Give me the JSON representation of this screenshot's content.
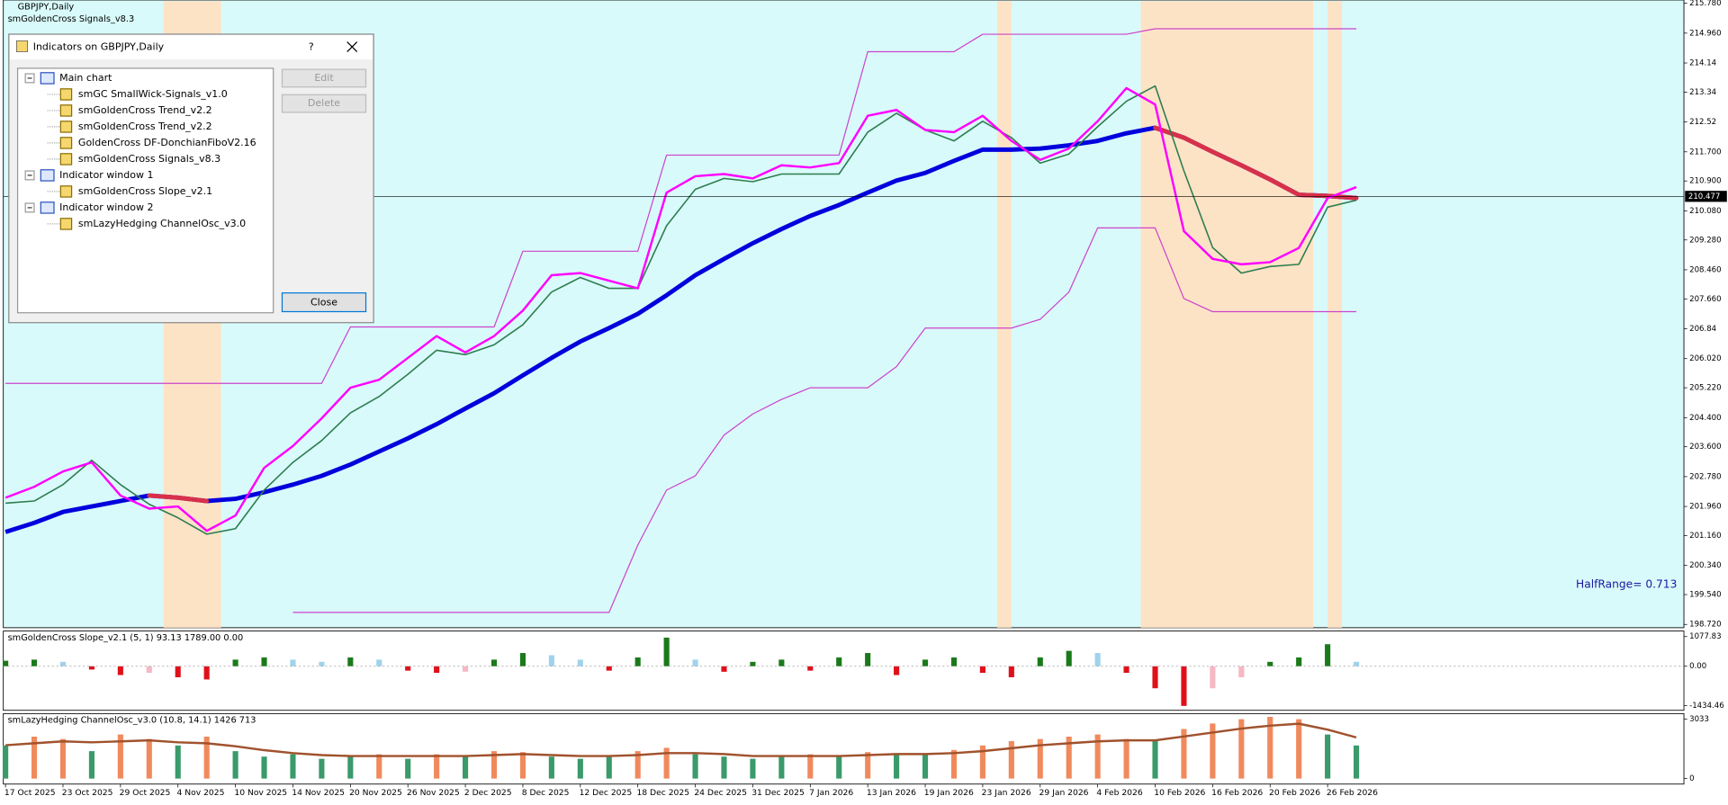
{
  "chart_header": {
    "symbol": "GBPJPY,Daily",
    "indicator": "smGoldenCross Signals_v8.3"
  },
  "dialog": {
    "title": "Indicators on GBPJPY,Daily",
    "help": "?",
    "tree": [
      {
        "label": "Main chart",
        "children": [
          "smGC SmallWick-Signals_v1.0",
          "smGoldenCross Trend_v2.2",
          "smGoldenCross Trend_v2.2",
          "GoldenCross DF-DonchianFiboV2.16",
          "smGoldenCross Signals_v8.3"
        ]
      },
      {
        "label": "Indicator window 1",
        "children": [
          "smGoldenCross Slope_v2.1"
        ]
      },
      {
        "label": "Indicator window 2",
        "children": [
          "smLazyHedging ChannelOsc_v3.0"
        ]
      }
    ],
    "buttons": {
      "edit": "Edit",
      "delete": "Delete",
      "close": "Close"
    }
  },
  "chart_data": [
    {
      "type": "line",
      "x": [
        0,
        2,
        4,
        6,
        8,
        10,
        12,
        14,
        16,
        18,
        20,
        22,
        24,
        26,
        28,
        30,
        32,
        34,
        36,
        38,
        40,
        42,
        44,
        46,
        48,
        50,
        52,
        54,
        56,
        58,
        60,
        62,
        64,
        66,
        68,
        70,
        72,
        74,
        76,
        78,
        80,
        82,
        84,
        86,
        88,
        90,
        92,
        94
      ],
      "series": [
        {
          "color": "#cc44cc",
          "line_width": 1,
          "values": [
            205.34,
            205.34,
            205.34,
            205.34,
            205.34,
            205.34,
            205.34,
            205.34,
            205.34,
            205.34,
            205.34,
            205.34,
            206.89,
            206.89,
            206.89,
            206.89,
            206.89,
            206.89,
            208.97,
            208.97,
            208.97,
            208.97,
            208.97,
            211.61,
            211.61,
            211.61,
            211.61,
            211.61,
            211.61,
            211.61,
            214.45,
            214.45,
            214.45,
            214.45,
            214.93,
            214.93,
            214.93,
            214.93,
            214.93,
            214.93,
            215.08,
            215.08,
            215.08,
            215.08,
            215.08,
            215.08,
            215.08,
            215.08
          ]
        },
        {
          "color": "#cc44cc",
          "line_width": 1,
          "values": [
            null,
            null,
            null,
            null,
            null,
            null,
            null,
            null,
            null,
            null,
            199.05,
            199.05,
            199.05,
            199.05,
            199.05,
            199.05,
            199.05,
            199.05,
            199.05,
            199.05,
            199.05,
            199.05,
            200.9,
            202.41,
            202.8,
            203.92,
            204.5,
            204.9,
            205.22,
            205.22,
            205.22,
            205.8,
            206.86,
            206.86,
            206.86,
            206.86,
            207.1,
            207.85,
            209.61,
            209.61,
            209.61,
            207.67,
            207.31,
            207.31,
            207.31,
            207.31,
            207.31,
            207.31
          ]
        },
        {
          "color": "#0000dd",
          "down_color": "#d9304a",
          "line_width": 4,
          "values": [
            201.26,
            201.51,
            201.81,
            201.96,
            202.11,
            202.26,
            202.2,
            202.11,
            202.17,
            202.35,
            202.56,
            202.8,
            203.11,
            203.47,
            203.83,
            204.22,
            204.65,
            205.07,
            205.56,
            206.04,
            206.49,
            206.86,
            207.25,
            207.76,
            208.31,
            208.76,
            209.19,
            209.58,
            209.94,
            210.24,
            210.58,
            210.91,
            211.12,
            211.45,
            211.76,
            211.76,
            211.79,
            211.88,
            212.0,
            212.21,
            212.36,
            212.09,
            211.7,
            211.33,
            210.94,
            210.52,
            210.49,
            210.43
          ]
        },
        {
          "color": "#2e7d4f",
          "line_width": 1.3,
          "values": [
            202.05,
            202.11,
            202.56,
            203.23,
            202.56,
            202.02,
            201.65,
            201.2,
            201.35,
            202.41,
            203.17,
            203.77,
            204.53,
            204.98,
            205.59,
            206.25,
            206.13,
            206.4,
            206.95,
            207.85,
            208.25,
            207.95,
            207.95,
            209.67,
            210.67,
            210.97,
            210.88,
            211.09,
            211.09,
            211.09,
            212.24,
            212.76,
            212.3,
            212.0,
            212.54,
            212.09,
            211.39,
            211.64,
            212.39,
            213.09,
            213.51,
            211.18,
            209.07,
            208.37,
            208.55,
            208.61,
            210.18,
            210.37
          ]
        },
        {
          "color": "#ff00ff",
          "line_width": 2,
          "values": [
            202.2,
            202.5,
            202.92,
            203.17,
            202.26,
            201.9,
            201.96,
            201.29,
            201.71,
            203.02,
            203.62,
            204.38,
            205.22,
            205.44,
            206.04,
            206.64,
            206.19,
            206.64,
            207.34,
            208.31,
            208.37,
            208.16,
            207.95,
            210.58,
            211.03,
            211.09,
            210.97,
            211.33,
            211.27,
            211.39,
            212.69,
            212.85,
            212.3,
            212.24,
            212.69,
            212.0,
            211.48,
            211.79,
            212.54,
            213.45,
            213.0,
            209.52,
            208.76,
            208.61,
            208.67,
            209.06,
            210.43,
            210.73
          ]
        }
      ],
      "shaded_ranges": [
        [
          11,
          15
        ],
        [
          69,
          70
        ],
        [
          79,
          91
        ],
        [
          92,
          93
        ]
      ],
      "shade_color": "#fde3c6",
      "background": "#d9fafa",
      "current_price": 210.477,
      "annotation": "HalfRange= 0.713",
      "ylim": [
        198.63,
        215.87
      ],
      "yticks": [
        {
          "value": 215.78,
          "label": "215.780"
        },
        {
          "value": 214.96,
          "label": "214.960"
        },
        214.14,
        213.34,
        212.52,
        {
          "value": 211.7,
          "label": "211.700"
        },
        {
          "value": 210.9,
          "label": "210.900"
        },
        {
          "value": 210.08,
          "label": "210.080"
        },
        {
          "value": 209.28,
          "label": "209.280"
        },
        {
          "value": 208.46,
          "label": "208.460"
        },
        {
          "value": 207.66,
          "label": "207.660"
        },
        206.84,
        {
          "value": 206.02,
          "label": "206.020"
        },
        {
          "value": 205.22,
          "label": "205.220"
        },
        {
          "value": 204.4,
          "label": "204.400"
        },
        {
          "value": 203.6,
          "label": "203.600"
        },
        {
          "value": 202.78,
          "label": "202.780"
        },
        {
          "value": 201.96,
          "label": "201.960"
        },
        {
          "value": 201.16,
          "label": "201.160"
        },
        {
          "value": 200.34,
          "label": "200.340"
        },
        {
          "value": 199.54,
          "label": "199.540"
        },
        {
          "value": 198.72,
          "label": "198.720"
        }
      ],
      "xticks": [
        {
          "value": 0,
          "label": "17 Oct 2025"
        },
        {
          "value": 4,
          "label": "23 Oct 2025"
        },
        {
          "value": 8,
          "label": "29 Oct 2025"
        },
        {
          "value": 12,
          "label": "4 Nov 2025"
        },
        {
          "value": 16,
          "label": "10 Nov 2025"
        },
        {
          "value": 20,
          "label": "14 Nov 2025"
        },
        {
          "value": 24,
          "label": "20 Nov 2025"
        },
        {
          "value": 28,
          "label": "26 Nov 2025"
        },
        {
          "value": 32,
          "label": "2 Dec 2025"
        },
        {
          "value": 36,
          "label": "8 Dec 2025"
        },
        {
          "value": 40,
          "label": "12 Dec 2025"
        },
        {
          "value": 44,
          "label": "18 Dec 2025"
        },
        {
          "value": 48,
          "label": "24 Dec 2025"
        },
        {
          "value": 52,
          "label": "31 Dec 2025"
        },
        {
          "value": 56,
          "label": "7 Jan 2026"
        },
        {
          "value": 60,
          "label": "13 Jan 2026"
        },
        {
          "value": 64,
          "label": "19 Jan 2026"
        },
        {
          "value": 68,
          "label": "23 Jan 2026"
        },
        {
          "value": 72,
          "label": "29 Jan 2026"
        },
        {
          "value": 76,
          "label": "4 Feb 2026"
        },
        {
          "value": 80,
          "label": "10 Feb 2026"
        },
        {
          "value": 84,
          "label": "16 Feb 2026"
        },
        {
          "value": 88,
          "label": "20 Feb 2026"
        },
        {
          "value": 92,
          "label": "26 Feb 2026"
        }
      ]
    },
    {
      "type": "bar",
      "title": "smGoldenCross Slope_v2.1 (5, 1)  93.13 1789.00 0.00",
      "x": [
        0,
        2,
        4,
        6,
        8,
        10,
        12,
        14,
        16,
        18,
        20,
        22,
        24,
        26,
        28,
        30,
        32,
        34,
        36,
        38,
        40,
        42,
        44,
        46,
        48,
        50,
        52,
        54,
        56,
        58,
        60,
        62,
        64,
        66,
        68,
        70,
        72,
        74,
        76,
        78,
        80,
        82,
        84,
        86,
        88,
        90,
        92,
        94
      ],
      "values": [
        200,
        240,
        160,
        -120,
        -320,
        -240,
        -400,
        -480,
        240,
        320,
        240,
        160,
        320,
        240,
        -160,
        -240,
        -200,
        240,
        480,
        400,
        240,
        -160,
        320,
        1040,
        240,
        -200,
        160,
        240,
        -160,
        320,
        480,
        -320,
        240,
        320,
        -240,
        -400,
        320,
        560,
        480,
        -240,
        -800,
        -1440,
        -800,
        -400,
        160,
        320,
        800,
        160
      ],
      "colors": [
        "#1a7a1a",
        "#9fd3ec",
        "#e0101a",
        "#f6b8c4"
      ],
      "ylim": [
        -1600,
        1280
      ],
      "yticks": [
        1077.83,
        {
          "value": 0,
          "label": "0.00"
        },
        -1434.46
      ]
    },
    {
      "type": "bar",
      "title": "smLazyHedging ChannelOsc_v3.0 (10.8, 14.1)  1426 713",
      "x": [
        0,
        2,
        4,
        6,
        8,
        10,
        12,
        14,
        16,
        18,
        20,
        22,
        24,
        26,
        28,
        30,
        32,
        34,
        36,
        38,
        40,
        42,
        44,
        46,
        48,
        50,
        52,
        54,
        56,
        58,
        60,
        62,
        64,
        66,
        68,
        70,
        72,
        74,
        76,
        78,
        80,
        82,
        84,
        86,
        88,
        90,
        92,
        94
      ],
      "series": [
        {
          "style": "bar",
          "colors": [
            "#f08a5d",
            "#3a9a6a"
          ],
          "values": [
            1690,
            2140,
            2020,
            1400,
            2250,
            2020,
            1690,
            2140,
            1400,
            1120,
            1240,
            1010,
            1120,
            1240,
            1010,
            1240,
            1120,
            1400,
            1350,
            1120,
            1010,
            1120,
            1400,
            1570,
            1240,
            1120,
            1010,
            1120,
            1240,
            1120,
            1350,
            1240,
            1240,
            1460,
            1690,
            1910,
            2020,
            2140,
            2250,
            2020,
            1910,
            2530,
            2810,
            3030,
            3150,
            3030,
            2250,
            1690
          ]
        },
        {
          "style": "line",
          "color": "#a0522d",
          "values": [
            1700,
            1800,
            1900,
            1850,
            1900,
            1950,
            1850,
            1800,
            1650,
            1450,
            1300,
            1200,
            1150,
            1150,
            1150,
            1150,
            1150,
            1200,
            1250,
            1200,
            1150,
            1150,
            1200,
            1300,
            1300,
            1250,
            1150,
            1150,
            1150,
            1150,
            1200,
            1250,
            1250,
            1300,
            1400,
            1550,
            1700,
            1800,
            1900,
            1950,
            1950,
            2150,
            2350,
            2550,
            2700,
            2800,
            2500,
            2100
          ]
        }
      ],
      "ylim": [
        -281,
        3316
      ],
      "yticks": [
        3033,
        0
      ]
    }
  ]
}
